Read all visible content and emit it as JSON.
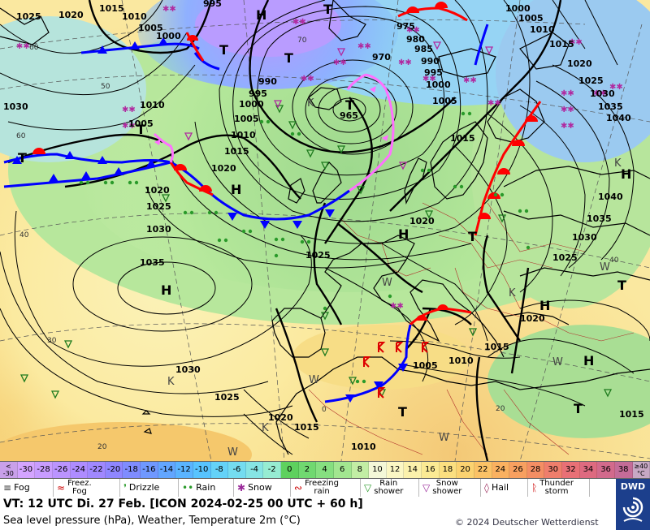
{
  "pressure_labels": {
    "p1025a": "1025",
    "p1020a": "1020",
    "p1015a": "1015",
    "p1010a": "1010",
    "p1005a": "1005",
    "p1000a": "1000",
    "p995a": "995",
    "p1030a": "1030",
    "p1005b": "1005",
    "p1010b": "1010",
    "p1010c": "1010",
    "p1020b": "1020",
    "p1025b": "1025",
    "p1030b": "1030",
    "p1035a": "1035",
    "p990a": "990",
    "p995b": "995",
    "p1000b": "1000",
    "p1005c": "1005",
    "p1010d": "1010",
    "p1015b": "1015",
    "p1020c": "1020",
    "p965": "965",
    "p970": "970",
    "p975": "975",
    "p980": "980",
    "p985": "985",
    "p990b": "990",
    "p995c": "995",
    "p1000c": "1000",
    "p1005d": "1005",
    "p1000d": "1000",
    "p1005e": "1005",
    "p1010e": "1010",
    "p1015c": "1015",
    "p1020d": "1020",
    "p1025c": "1025",
    "p1030c": "1030",
    "p1035b": "1035",
    "p1040a": "1040",
    "p1040b": "1040",
    "p1035c": "1035",
    "p1030d": "1030",
    "p1025d": "1025",
    "p1020e": "1020",
    "p1015d": "1015",
    "p1010f": "1010",
    "p1005f": "1005",
    "p1025e": "1025",
    "p1030e": "1030",
    "p1025f": "1025",
    "p1020f": "1020",
    "p1015e": "1015",
    "p1010g": "1010",
    "p1015f": "1015",
    "p1020g": "1020",
    "p1025g": "1025"
  },
  "centers": {
    "h1": "H",
    "h2": "H",
    "h3": "H",
    "h4": "H",
    "h5": "H",
    "h6": "H",
    "h7": "H",
    "h8": "H",
    "t1": "T",
    "t2": "T",
    "t3": "T",
    "t4": "T",
    "t5": "T",
    "t6": "T",
    "t7": "T",
    "t8": "T",
    "t9": "T",
    "t10": "T",
    "k1": "K",
    "k2": "K",
    "k3": "K",
    "k4": "K",
    "k5": "K",
    "w1": "W",
    "w2": "W",
    "w3": "W",
    "w4": "W",
    "w5": "W",
    "w6": "W"
  },
  "graticule": {
    "g60": "60",
    "g50": "50",
    "g40": "40",
    "g30": "30",
    "g20": "20",
    "g70": "70",
    "g40e": "40",
    "g20e": "20",
    "g0": "0",
    "g60b": "60"
  },
  "temperature_scale": [
    {
      "label": "<\n-30",
      "color": "#c9a0ea"
    },
    {
      "label": "-30",
      "color": "#d4a4ff"
    },
    {
      "label": "-28",
      "color": "#c89cff"
    },
    {
      "label": "-26",
      "color": "#bb94ff"
    },
    {
      "label": "-24",
      "color": "#ae8cff"
    },
    {
      "label": "-22",
      "color": "#a088ff"
    },
    {
      "label": "-20",
      "color": "#8f86ff"
    },
    {
      "label": "-18",
      "color": "#7f8cff"
    },
    {
      "label": "-16",
      "color": "#6f98ff"
    },
    {
      "label": "-14",
      "color": "#62a6ff"
    },
    {
      "label": "-12",
      "color": "#5ab4ff"
    },
    {
      "label": "-10",
      "color": "#58c4ff"
    },
    {
      "label": "-8",
      "color": "#64d2f8"
    },
    {
      "label": "-6",
      "color": "#74dcf0"
    },
    {
      "label": "-4",
      "color": "#86e4e4"
    },
    {
      "label": "-2",
      "color": "#96ecd2"
    },
    {
      "label": "0",
      "color": "#5ed15e"
    },
    {
      "label": "2",
      "color": "#70d870"
    },
    {
      "label": "4",
      "color": "#86df80"
    },
    {
      "label": "6",
      "color": "#a2e690"
    },
    {
      "label": "8",
      "color": "#c2eea4"
    },
    {
      "label": "10",
      "color": "#f4f8d8"
    },
    {
      "label": "12",
      "color": "#fbf7c4"
    },
    {
      "label": "14",
      "color": "#fbf1ac"
    },
    {
      "label": "16",
      "color": "#fbea94"
    },
    {
      "label": "18",
      "color": "#fbdf80"
    },
    {
      "label": "20",
      "color": "#fbd270"
    },
    {
      "label": "22",
      "color": "#fbc266"
    },
    {
      "label": "24",
      "color": "#fab160"
    },
    {
      "label": "26",
      "color": "#f8a060"
    },
    {
      "label": "28",
      "color": "#f48e64"
    },
    {
      "label": "30",
      "color": "#ef7e6c"
    },
    {
      "label": "32",
      "color": "#e97076"
    },
    {
      "label": "34",
      "color": "#de6a80"
    },
    {
      "label": "36",
      "color": "#d26a8c"
    },
    {
      "label": "38",
      "color": "#c46c98"
    },
    {
      "label": "≥40\n°C",
      "color": "#c7a8c4"
    }
  ],
  "weather_legend": [
    {
      "symbol": "≡",
      "label": "Fog",
      "color": "#333"
    },
    {
      "symbol": "≈",
      "label": "Freez.\nFog",
      "color": "#c00"
    },
    {
      "symbol": "❜",
      "label": "Drizzle",
      "color": "#2a9a2a"
    },
    {
      "symbol": "••",
      "label": "Rain",
      "color": "#2a9a2a"
    },
    {
      "symbol": "✱",
      "label": "Snow",
      "color": "#9a2a9a"
    },
    {
      "symbol": "∾",
      "label": "Freezing\nrain",
      "color": "#c00"
    },
    {
      "symbol": "▽",
      "label": "Rain\nshower",
      "color": "#2a9a2a"
    },
    {
      "symbol": "▽",
      "label": "Snow\nshower",
      "color": "#9a2a9a"
    },
    {
      "symbol": "◊",
      "label": "Hail",
      "color": "#9a2a5a"
    },
    {
      "symbol": "ᚱ",
      "label": "Thunder\nstorm",
      "color": "#c00"
    }
  ],
  "footer": {
    "valid_time": "VT: 12 UTC Di.   27 Feb. [ICON 2024-02-25   00 UTC + 60 h]",
    "description": "Sea level pressure (hPa), Weather, Temperature 2m (°C)",
    "copyright": "© 2024 Deutscher Wetterdienst",
    "logo_text": "DWD"
  },
  "colors": {
    "warm_front": "#ff0000",
    "cold_front": "#0000ff",
    "occlusion": "#ff70ff",
    "rain": "#2a9a2a",
    "snow": "#b02aa0",
    "brand": "#1c3f8c"
  }
}
